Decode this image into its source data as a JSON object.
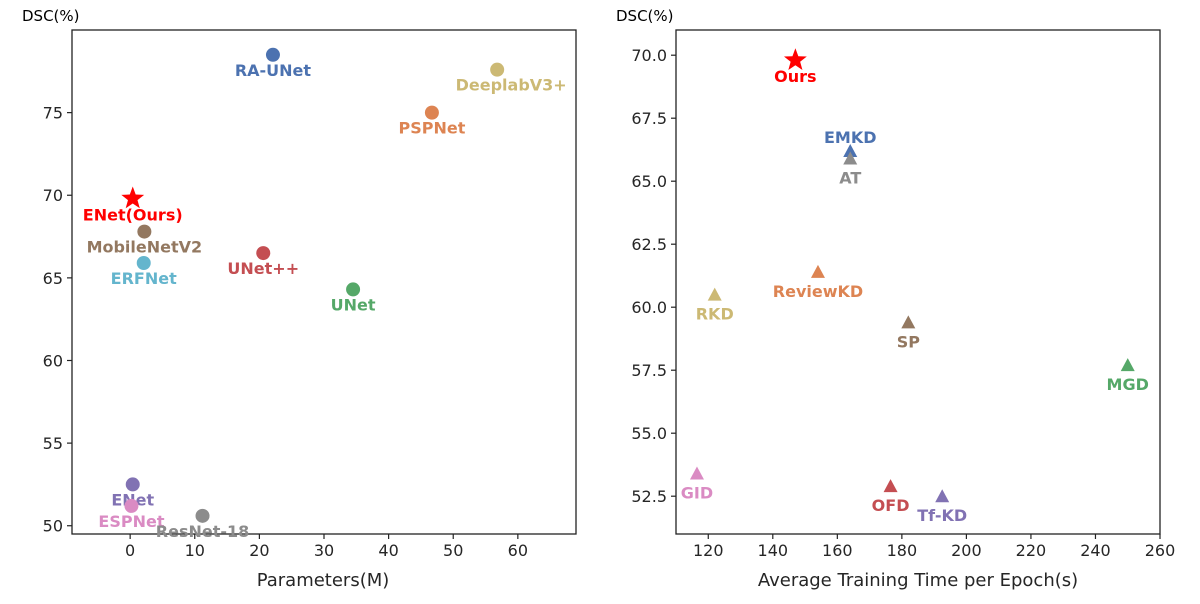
{
  "chart_data": [
    {
      "type": "scatter",
      "ylabel": "DSC(%)",
      "xlabel": "Parameters(M)",
      "xlim": [
        -9,
        69
      ],
      "ylim": [
        49.5,
        80
      ],
      "xticks": [
        0,
        10,
        20,
        30,
        40,
        50,
        60
      ],
      "yticks": [
        50,
        55,
        60,
        65,
        70,
        75
      ],
      "grid": false,
      "points": [
        {
          "name": "RA-UNet",
          "x": 22.1,
          "y": 78.5,
          "color": "#4c72b0",
          "marker": "circle",
          "label_pos": "below"
        },
        {
          "name": "DeeplabV3+",
          "x": 56.8,
          "y": 77.6,
          "color": "#ccb974",
          "marker": "circle",
          "label_pos": "below-right"
        },
        {
          "name": "PSPNet",
          "x": 46.7,
          "y": 75.0,
          "color": "#dd8452",
          "marker": "circle",
          "label_pos": "below"
        },
        {
          "name": "ENet(Ours)",
          "x": 0.4,
          "y": 69.8,
          "color": "#ff0000",
          "marker": "star",
          "label_pos": "below"
        },
        {
          "name": "MobileNetV2",
          "x": 2.2,
          "y": 67.8,
          "color": "#937860",
          "marker": "circle",
          "label_pos": "below"
        },
        {
          "name": "UNet++",
          "x": 20.6,
          "y": 66.5,
          "color": "#c44e52",
          "marker": "circle",
          "label_pos": "below"
        },
        {
          "name": "ERFNet",
          "x": 2.1,
          "y": 65.9,
          "color": "#64b5cd",
          "marker": "circle",
          "label_pos": "below"
        },
        {
          "name": "UNet",
          "x": 34.5,
          "y": 64.3,
          "color": "#55a868",
          "marker": "circle",
          "label_pos": "below"
        },
        {
          "name": "ENet",
          "x": 0.4,
          "y": 52.5,
          "color": "#8172b3",
          "marker": "circle",
          "label_pos": "below"
        },
        {
          "name": "ESPNet",
          "x": 0.2,
          "y": 51.2,
          "color": "#da8bc3",
          "marker": "circle",
          "label_pos": "below"
        },
        {
          "name": "ResNet-18",
          "x": 11.2,
          "y": 50.6,
          "color": "#8c8c8c",
          "marker": "circle",
          "label_pos": "below"
        }
      ]
    },
    {
      "type": "scatter",
      "ylabel": "DSC(%)",
      "xlabel": "Average Training Time per Epoch(s)",
      "xlim": [
        110,
        260
      ],
      "ylim": [
        51,
        71
      ],
      "xticks": [
        120,
        140,
        160,
        180,
        200,
        220,
        240,
        260
      ],
      "yticks": [
        52.5,
        55.0,
        57.5,
        60.0,
        62.5,
        65.0,
        67.5,
        70.0
      ],
      "grid": false,
      "points": [
        {
          "name": "Ours",
          "x": 147,
          "y": 69.8,
          "color": "#ff0000",
          "marker": "star",
          "label_pos": "below"
        },
        {
          "name": "EMKD",
          "x": 164,
          "y": 66.2,
          "color": "#4c72b0",
          "marker": "triangle",
          "label_pos": "above"
        },
        {
          "name": "AT",
          "x": 164,
          "y": 65.9,
          "color": "#8c8c8c",
          "marker": "triangle",
          "label_pos": "below"
        },
        {
          "name": "ReviewKD",
          "x": 154,
          "y": 61.4,
          "color": "#dd8452",
          "marker": "triangle",
          "label_pos": "below"
        },
        {
          "name": "RKD",
          "x": 122,
          "y": 60.5,
          "color": "#ccb974",
          "marker": "triangle",
          "label_pos": "below"
        },
        {
          "name": "SP",
          "x": 182,
          "y": 59.4,
          "color": "#937860",
          "marker": "triangle",
          "label_pos": "below"
        },
        {
          "name": "MGD",
          "x": 250,
          "y": 57.7,
          "color": "#55a868",
          "marker": "triangle",
          "label_pos": "below"
        },
        {
          "name": "GID",
          "x": 116.5,
          "y": 53.4,
          "color": "#da8bc3",
          "marker": "triangle",
          "label_pos": "below"
        },
        {
          "name": "OFD",
          "x": 176.5,
          "y": 52.9,
          "color": "#c44e52",
          "marker": "triangle",
          "label_pos": "below"
        },
        {
          "name": "Tf-KD",
          "x": 192.5,
          "y": 52.5,
          "color": "#8172b3",
          "marker": "triangle",
          "label_pos": "below"
        }
      ]
    }
  ]
}
